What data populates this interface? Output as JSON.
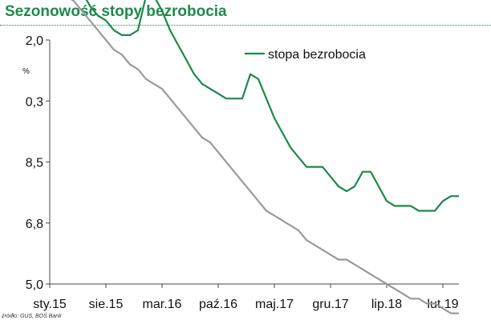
{
  "title": "Sezonowość stopy bezrobocia",
  "source": "żródło: GUS, BOŚ Bank",
  "colors": {
    "title": "#1e8a4a",
    "series_main": "#1a8a48",
    "series_trend": "#9a9a9a",
    "axis": "#444444"
  },
  "chart_data": {
    "type": "line",
    "ylabel": "%",
    "ylim": [
      5.0,
      10.0
    ],
    "yticks": [
      "2,0",
      "0,3",
      "8,5",
      "6,8",
      "5,0"
    ],
    "xticks": [
      "sty.15",
      "sie.15",
      "mar.16",
      "paź.16",
      "maj.17",
      "gru.17",
      "lip.18",
      "lut.19"
    ],
    "legend": {
      "label": "stopa bezrobocia",
      "position": "top-right"
    },
    "series": [
      {
        "name": "stopa bezrobocia",
        "values": [
          11.9,
          11.9,
          11.6,
          11.3,
          11.0,
          10.7,
          10.5,
          10.4,
          10.2,
          10.1,
          10.1,
          10.2,
          10.9,
          10.9,
          10.6,
          10.2,
          9.9,
          9.6,
          9.3,
          9.1,
          9.0,
          8.9,
          8.8,
          8.8,
          8.8,
          9.3,
          9.2,
          8.8,
          8.4,
          8.1,
          7.8,
          7.6,
          7.4,
          7.4,
          7.4,
          7.2,
          7.0,
          6.9,
          7.0,
          7.3,
          7.3,
          7.0,
          6.7,
          6.6,
          6.6,
          6.6,
          6.5,
          6.5,
          6.5,
          6.7,
          6.8,
          6.8
        ]
      },
      {
        "values": [
          11.2,
          11.1,
          10.9,
          10.8,
          10.6,
          10.4,
          10.2,
          10.0,
          9.8,
          9.7,
          9.5,
          9.4,
          9.2,
          9.1,
          9.0,
          8.8,
          8.6,
          8.4,
          8.2,
          8.0,
          7.9,
          7.7,
          7.5,
          7.3,
          7.1,
          6.9,
          6.7,
          6.5,
          6.4,
          6.3,
          6.2,
          6.1,
          5.9,
          5.8,
          5.7,
          5.6,
          5.5,
          5.5,
          5.4,
          5.3,
          5.2,
          5.1,
          5.0,
          4.9,
          4.8,
          4.7,
          4.7,
          4.6,
          4.6,
          4.5,
          4.4,
          4.4
        ]
      }
    ]
  }
}
